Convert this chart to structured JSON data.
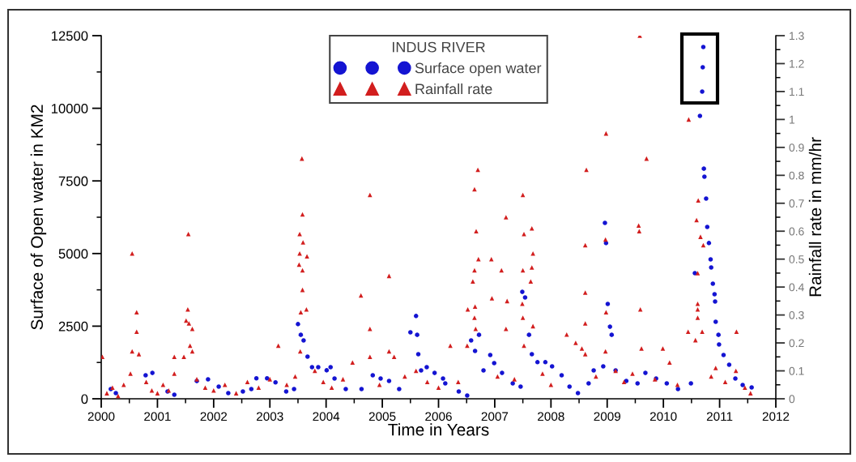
{
  "chart_data": {
    "type": "scatter",
    "xlabel": "Time in Years",
    "ylabel": "Surface of Open water in KM2",
    "y2label": "Rainfall rate in mm/hr",
    "legend_title": "INDUS RIVER",
    "xlim": [
      2000,
      2012
    ],
    "xticks": [
      2000,
      2001,
      2002,
      2003,
      2004,
      2005,
      2006,
      2007,
      2008,
      2009,
      2010,
      2011,
      2012
    ],
    "ylim": [
      0,
      12500
    ],
    "yticks": [
      0,
      2500,
      5000,
      7500,
      10000,
      12500
    ],
    "y2lim": [
      0,
      1.3
    ],
    "y2ticks": [
      0,
      0.1,
      0.2,
      0.3,
      0.4,
      0.5,
      0.6,
      0.7,
      0.8,
      0.9,
      1,
      1.1,
      1.2,
      1.3
    ],
    "grid": false,
    "legend": "top",
    "series": [
      {
        "name": "Surface open water",
        "color": "#1414d2",
        "marker": "circle",
        "x": [
          2000.17,
          2000.26,
          2000.79,
          2000.91,
          2001.18,
          2001.3,
          2001.7,
          2001.9,
          2002.09,
          2002.26,
          2002.52,
          2002.67,
          2002.76,
          2002.95,
          2003.1,
          2003.29,
          2003.43,
          2003.5,
          2003.55,
          2003.6,
          2003.67,
          2003.75,
          2003.86,
          2004.01,
          2004.08,
          2004.15,
          2004.35,
          2004.63,
          2004.83,
          2004.97,
          2005.12,
          2005.3,
          2005.5,
          2005.6,
          2005.62,
          2005.64,
          2005.69,
          2005.79,
          2005.93,
          2006.08,
          2006.12,
          2006.36,
          2006.51,
          2006.58,
          2006.65,
          2006.72,
          2006.8,
          2006.92,
          2006.99,
          2007.13,
          2007.32,
          2007.46,
          2007.49,
          2007.54,
          2007.61,
          2007.66,
          2007.76,
          2007.9,
          2008.02,
          2008.19,
          2008.33,
          2008.48,
          2008.67,
          2008.76,
          2008.93,
          2008.96,
          2008.98,
          2009.01,
          2009.05,
          2009.08,
          2009.15,
          2009.34,
          2009.54,
          2009.68,
          2009.87,
          2010.06,
          2010.26,
          2010.49,
          2010.56,
          2010.65,
          2010.69,
          2010.7,
          2010.71,
          2010.72,
          2010.73,
          2010.76,
          2010.78,
          2010.81,
          2010.84,
          2010.85,
          2010.88,
          2010.91,
          2010.92,
          2010.93,
          2010.98,
          2010.99,
          2011.07,
          2011.17,
          2011.28,
          2011.41,
          2011.57
        ],
        "values": [
          335,
          195,
          810,
          890,
          250,
          140,
          610,
          670,
          420,
          195,
          250,
          335,
          705,
          705,
          565,
          250,
          335,
          2570,
          2200,
          2010,
          1450,
          1090,
          1090,
          980,
          1090,
          700,
          335,
          335,
          810,
          700,
          615,
          335,
          2290,
          2850,
          2200,
          1535,
          975,
          1090,
          890,
          700,
          530,
          250,
          110,
          2010,
          1645,
          2200,
          975,
          1505,
          1230,
          890,
          530,
          420,
          3680,
          3490,
          2200,
          1535,
          1260,
          1260,
          1115,
          810,
          420,
          195,
          530,
          975,
          1115,
          6055,
          5360,
          3265,
          2480,
          2200,
          975,
          615,
          530,
          890,
          700,
          530,
          335,
          530,
          4325,
          9740,
          10575,
          11410,
          12110,
          7920,
          7645,
          6890,
          5915,
          5360,
          4800,
          4520,
          3960,
          3600,
          3350,
          2650,
          2200,
          1870,
          1505,
          1170,
          700,
          475,
          390
        ]
      },
      {
        "name": "Rainfall rate",
        "color": "#d21e1e",
        "marker": "triangle",
        "axis": "y2",
        "x": [
          2000.02,
          2000.1,
          2000.2,
          2000.3,
          2000.4,
          2000.52,
          2000.55,
          2000.55,
          2000.63,
          2000.63,
          2000.67,
          2000.8,
          2000.9,
          2001.0,
          2001.1,
          2001.2,
          2001.3,
          2001.3,
          2001.47,
          2001.51,
          2001.54,
          2001.55,
          2001.56,
          2001.58,
          2001.62,
          2001.62,
          2001.7,
          2001.85,
          2002.0,
          2002.2,
          2002.4,
          2002.6,
          2002.8,
          2003.0,
          2003.15,
          2003.3,
          2003.45,
          2003.52,
          2003.53,
          2003.53,
          2003.54,
          2003.55,
          2003.57,
          2003.58,
          2003.58,
          2003.58,
          2003.59,
          2003.65,
          2003.66,
          2003.8,
          2003.95,
          2004.1,
          2004.3,
          2004.47,
          2004.62,
          2004.78,
          2004.78,
          2004.78,
          2004.95,
          2005.12,
          2005.12,
          2005.21,
          2005.4,
          2005.6,
          2005.8,
          2006.0,
          2006.21,
          2006.35,
          2006.51,
          2006.52,
          2006.61,
          2006.64,
          2006.64,
          2006.64,
          2006.65,
          2006.66,
          2006.67,
          2006.7,
          2006.71,
          2006.94,
          2006.95,
          2007.05,
          2007.12,
          2007.2,
          2007.2,
          2007.22,
          2007.35,
          2007.49,
          2007.5,
          2007.5,
          2007.5,
          2007.52,
          2007.52,
          2007.64,
          2007.66,
          2007.66,
          2007.68,
          2007.68,
          2007.85,
          2008.0,
          2008.28,
          2008.44,
          2008.55,
          2008.61,
          2008.61,
          2008.61,
          2008.61,
          2008.63,
          2008.8,
          2008.97,
          2008.97,
          2008.98,
          2008.98,
          2009.15,
          2009.3,
          2009.45,
          2009.56,
          2009.57,
          2009.58,
          2009.59,
          2009.61,
          2009.7,
          2009.85,
          2009.99,
          2010.11,
          2010.25,
          2010.44,
          2010.45,
          2010.57,
          2010.59,
          2010.61,
          2010.61,
          2010.61,
          2010.61,
          2010.62,
          2010.66,
          2010.69,
          2010.71,
          2010.85,
          2010.93,
          2011.1,
          2011.29,
          2011.3,
          2011.45,
          2011.55
        ],
        "values": [
          0.15,
          0.02,
          0.04,
          0.01,
          0.05,
          0.09,
          0.17,
          0.52,
          0.31,
          0.24,
          0.16,
          0.06,
          0.03,
          0.02,
          0.05,
          0.03,
          0.15,
          0.09,
          0.15,
          0.28,
          0.32,
          0.59,
          0.27,
          0.19,
          0.25,
          0.17,
          0.07,
          0.04,
          0.03,
          0.05,
          0.02,
          0.06,
          0.04,
          0.07,
          0.19,
          0.05,
          0.08,
          0.48,
          0.59,
          0.52,
          0.17,
          0.31,
          0.86,
          0.66,
          0.46,
          0.39,
          0.56,
          0.32,
          0.51,
          0.1,
          0.06,
          0.04,
          0.07,
          0.13,
          0.37,
          0.73,
          0.25,
          0.15,
          0.05,
          0.44,
          0.17,
          0.15,
          0.08,
          0.1,
          0.06,
          0.04,
          0.19,
          0.06,
          0.19,
          0.32,
          0.42,
          0.75,
          0.46,
          0.29,
          0.33,
          0.25,
          0.6,
          0.82,
          0.5,
          0.5,
          0.36,
          0.08,
          0.46,
          0.65,
          0.25,
          0.35,
          0.07,
          0.34,
          0.73,
          0.46,
          0.29,
          0.59,
          0.19,
          0.42,
          0.61,
          0.47,
          0.52,
          0.26,
          0.09,
          0.05,
          0.23,
          0.2,
          0.18,
          0.55,
          0.38,
          0.27,
          0.16,
          0.82,
          0.08,
          0.57,
          0.17,
          0.95,
          0.31,
          0.1,
          0.06,
          0.09,
          0.62,
          0.6,
          1.3,
          0.32,
          0.18,
          0.86,
          0.07,
          0.18,
          0.13,
          0.05,
          0.24,
          1.0,
          0.21,
          0.64,
          0.45,
          0.34,
          0.32,
          0.29,
          0.71,
          0.58,
          0.24,
          0.55,
          0.08,
          0.11,
          0.06,
          0.1,
          0.24,
          0.04,
          0.02
        ]
      }
    ]
  }
}
